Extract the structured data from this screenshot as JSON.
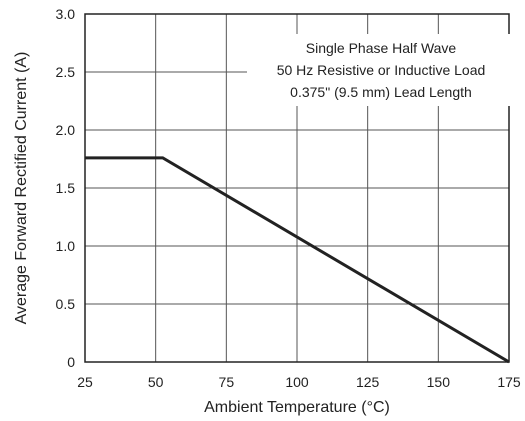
{
  "chart_data": {
    "type": "line",
    "title": "",
    "xlabel": "Ambient Temperature (°C)",
    "ylabel": "Average Forward Rectified Current (A)",
    "xlim": [
      25,
      175
    ],
    "ylim": [
      0,
      3.0
    ],
    "xticks": [
      25,
      50,
      75,
      100,
      125,
      150,
      175
    ],
    "xtick_labels": [
      "25",
      "50",
      "75",
      "100",
      "125",
      "150",
      "175"
    ],
    "yticks": [
      0,
      0.5,
      1.0,
      1.5,
      2.0,
      2.5,
      3.0
    ],
    "ytick_labels": [
      "0",
      "0.5",
      "1.0",
      "1.5",
      "2.0",
      "2.5",
      "3.0"
    ],
    "grid": true,
    "series": [
      {
        "x": [
          25,
          52.5,
          175
        ],
        "y": [
          1.76,
          1.76,
          0
        ]
      }
    ],
    "annotations": [
      "Single Phase Half Wave",
      "50 Hz Resistive or Inductive Load",
      "0.375\" (9.5 mm) Lead Length"
    ],
    "colors": {
      "line": "#222222",
      "grid": "#555555",
      "frame": "#222222"
    }
  }
}
